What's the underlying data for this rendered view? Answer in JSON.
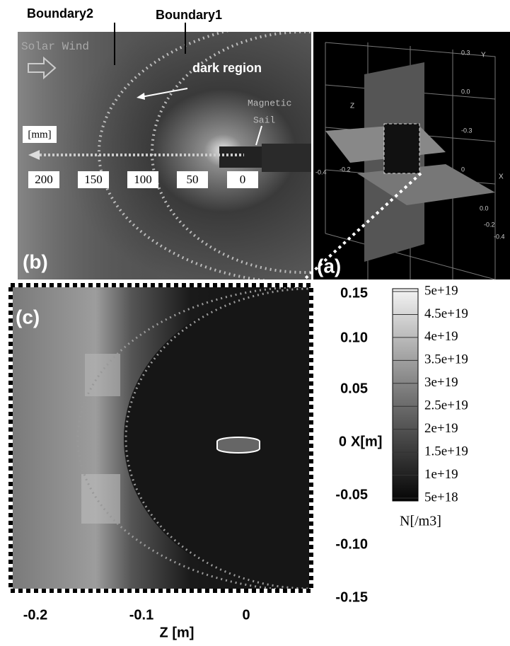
{
  "annotations": {
    "boundary2": "Boundary2",
    "boundary1": "Boundary1",
    "dark_region": "dark region"
  },
  "panel_b": {
    "label": "(b)",
    "solar_wind": "Solar Wind",
    "magnetic_sail": [
      "Magnetic",
      "Sail"
    ],
    "unit": "[mm]",
    "scale": [
      "200",
      "150",
      "100",
      "50",
      "0"
    ]
  },
  "panel_a": {
    "label": "(a)",
    "axes": [
      "Y",
      "Z",
      "X"
    ],
    "ticks": [
      "0.3",
      "0.0",
      "-0.3",
      "0",
      "-0.4",
      "-0.2",
      "0.0",
      "-0.2",
      "-0.4"
    ]
  },
  "panel_c": {
    "label": "(c)",
    "y_ticks": [
      "0.15",
      "0.10",
      "0.05",
      "0",
      "-0.05",
      "-0.10",
      "-0.15"
    ],
    "y_axis_label": "X[m]",
    "x_ticks": [
      "-0.2",
      "-0.1",
      "0"
    ],
    "x_axis_label": "Z [m]",
    "colorbar_labels": [
      "5e+19",
      "4.5e+19",
      "4e+19",
      "3.5e+19",
      "3e+19",
      "2.5e+19",
      "2e+19",
      "1.5e+19",
      "1e+19",
      "5e+18"
    ],
    "colorbar_title": "N[/m3]"
  }
}
